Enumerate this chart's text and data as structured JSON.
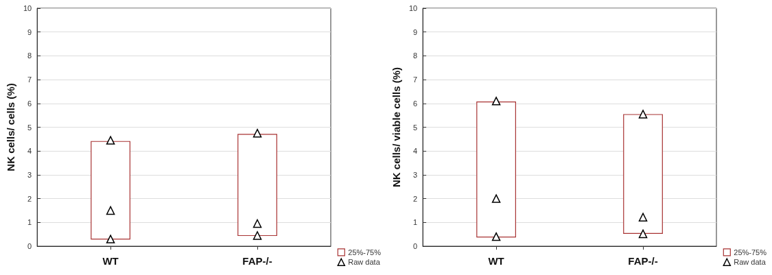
{
  "chart_data": [
    {
      "type": "bar",
      "ylabel": "NK cells/ cells (%)",
      "categories": [
        "WT",
        "FAP-/-"
      ],
      "ylim": [
        0,
        10
      ],
      "yticks": [
        0,
        1,
        2,
        3,
        4,
        5,
        6,
        7,
        8,
        9,
        10
      ],
      "grid": "y",
      "legend": "bottom right",
      "series": [
        {
          "name": "25%-75%",
          "type": "bar",
          "color": "#a83232",
          "base": [
            0.28,
            0.43
          ],
          "values": [
            4.14,
            4.29
          ]
        },
        {
          "name": "Raw data",
          "type": "scatter",
          "color": "#000000",
          "marker": "triangle",
          "x": [
            "WT",
            "WT",
            "WT",
            "FAP-/-",
            "FAP-/-",
            "FAP-/-"
          ],
          "values": [
            4.45,
            1.5,
            0.3,
            4.75,
            0.95,
            0.45
          ]
        }
      ]
    },
    {
      "type": "bar",
      "ylabel": "NK cells/ viable cells (%)",
      "categories": [
        "WT",
        "FAP-/-"
      ],
      "ylim": [
        0,
        10
      ],
      "yticks": [
        0,
        1,
        2,
        3,
        4,
        5,
        6,
        7,
        8,
        9,
        10
      ],
      "grid": "y",
      "legend": "bottom right",
      "series": [
        {
          "name": "25%-75%",
          "type": "bar",
          "color": "#a83232",
          "base": [
            0.37,
            0.52
          ],
          "values": [
            5.71,
            5.03
          ]
        },
        {
          "name": "Raw data",
          "type": "scatter",
          "color": "#000000",
          "marker": "triangle",
          "x": [
            "WT",
            "WT",
            "WT",
            "FAP-/-",
            "FAP-/-",
            "FAP-/-"
          ],
          "values": [
            6.1,
            2.0,
            0.4,
            5.55,
            1.22,
            0.52
          ]
        }
      ]
    }
  ]
}
